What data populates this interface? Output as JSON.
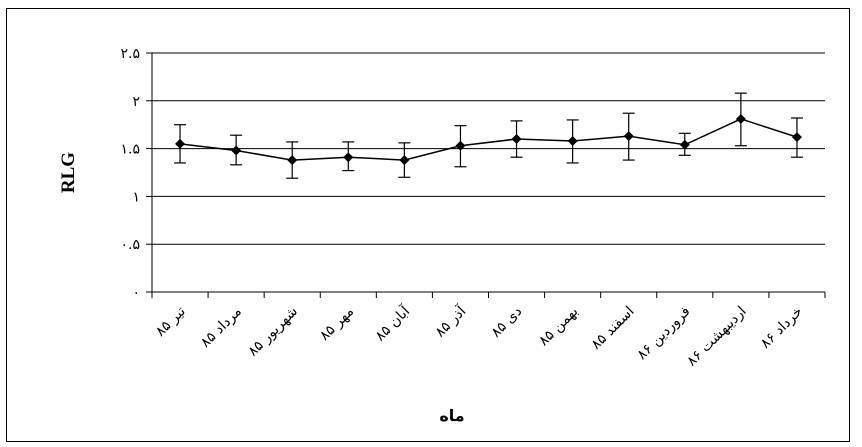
{
  "chart_data": {
    "type": "line",
    "title": "",
    "xlabel": "ماه",
    "ylabel": "RLG",
    "ylim": [
      0,
      2.5
    ],
    "y_ticks": [
      0,
      0.5,
      1,
      1.5,
      2,
      2.5
    ],
    "y_tick_labels": [
      "۰",
      "۰.۵",
      "۱",
      "۱.۵",
      "۲",
      "۲.۵"
    ],
    "grid": "horizontal",
    "legend": "none",
    "categories": [
      "تیر ۸۵",
      "مرداد ۸۵",
      "شهریور ۸۵",
      "مهر ۸۵",
      "آبان ۸۵",
      "آذر ۸۵",
      "دی ۸۵",
      "بهمن ۸۵",
      "اسفند ۸۵",
      "فروردین ۸۶",
      "اردیبهشت ۸۶",
      "خرداد ۸۶"
    ],
    "series": [
      {
        "values": [
          1.55,
          1.48,
          1.38,
          1.41,
          1.38,
          1.53,
          1.6,
          1.58,
          1.63,
          1.54,
          1.81,
          1.62
        ],
        "error_low": [
          1.35,
          1.33,
          1.19,
          1.27,
          1.2,
          1.31,
          1.41,
          1.35,
          1.38,
          1.43,
          1.53,
          1.41
        ],
        "error_high": [
          1.75,
          1.64,
          1.57,
          1.57,
          1.56,
          1.74,
          1.79,
          1.8,
          1.87,
          1.66,
          2.08,
          1.82
        ],
        "color": "#000000",
        "marker": "diamond"
      }
    ]
  }
}
